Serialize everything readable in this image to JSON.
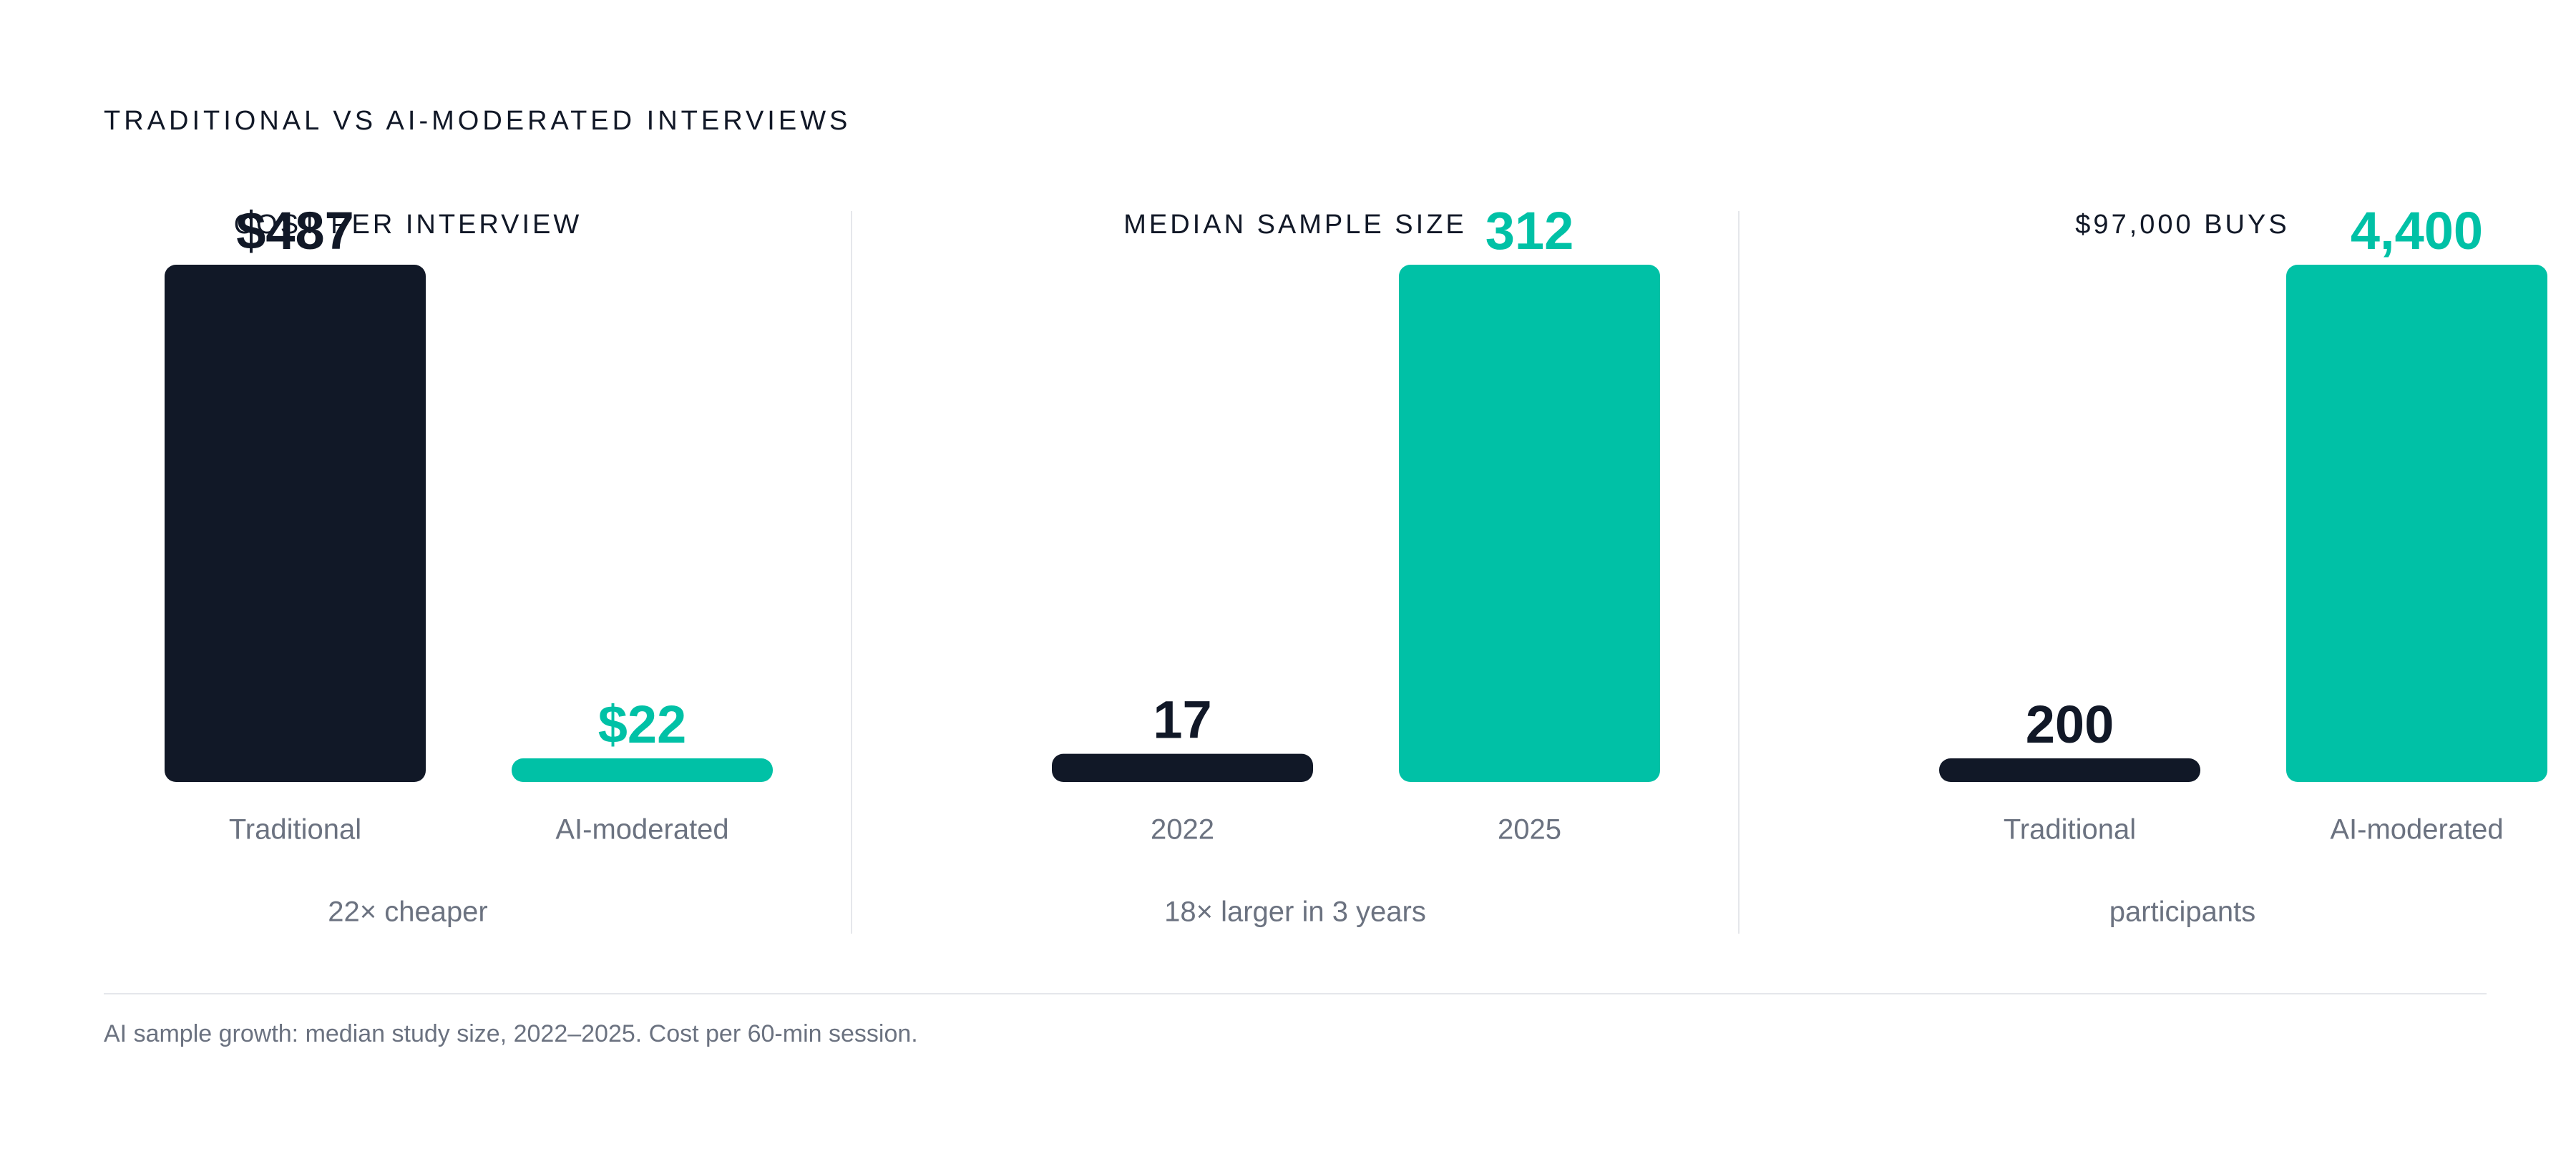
{
  "title": "TRADITIONAL VS AI-MODERATED INTERVIEWS",
  "footnote": "AI sample growth: median study size, 2022–2025. Cost per 60-min session.",
  "colors": {
    "dark": "#111827",
    "accent": "#00c1a6",
    "muted": "#6b7280",
    "divider": "#e5e7eb"
  },
  "chart_data": [
    {
      "type": "bar",
      "title": "COST PER INTERVIEW",
      "categories": [
        "Traditional",
        "AI-moderated"
      ],
      "values": [
        487,
        22
      ],
      "value_labels": [
        "$487",
        "$22"
      ],
      "caption": "22× cheaper",
      "series_colors": [
        "#111827",
        "#00c1a6"
      ]
    },
    {
      "type": "bar",
      "title": "MEDIAN SAMPLE SIZE",
      "categories": [
        "2022",
        "2025"
      ],
      "values": [
        17,
        312
      ],
      "value_labels": [
        "17",
        "312"
      ],
      "caption": "18× larger in 3 years",
      "series_colors": [
        "#111827",
        "#00c1a6"
      ]
    },
    {
      "type": "bar",
      "title": "$97,000 BUYS",
      "categories": [
        "Traditional",
        "AI-moderated"
      ],
      "values": [
        200,
        4400
      ],
      "value_labels": [
        "200",
        "4,400"
      ],
      "caption": "participants",
      "series_colors": [
        "#111827",
        "#00c1a6"
      ]
    }
  ]
}
